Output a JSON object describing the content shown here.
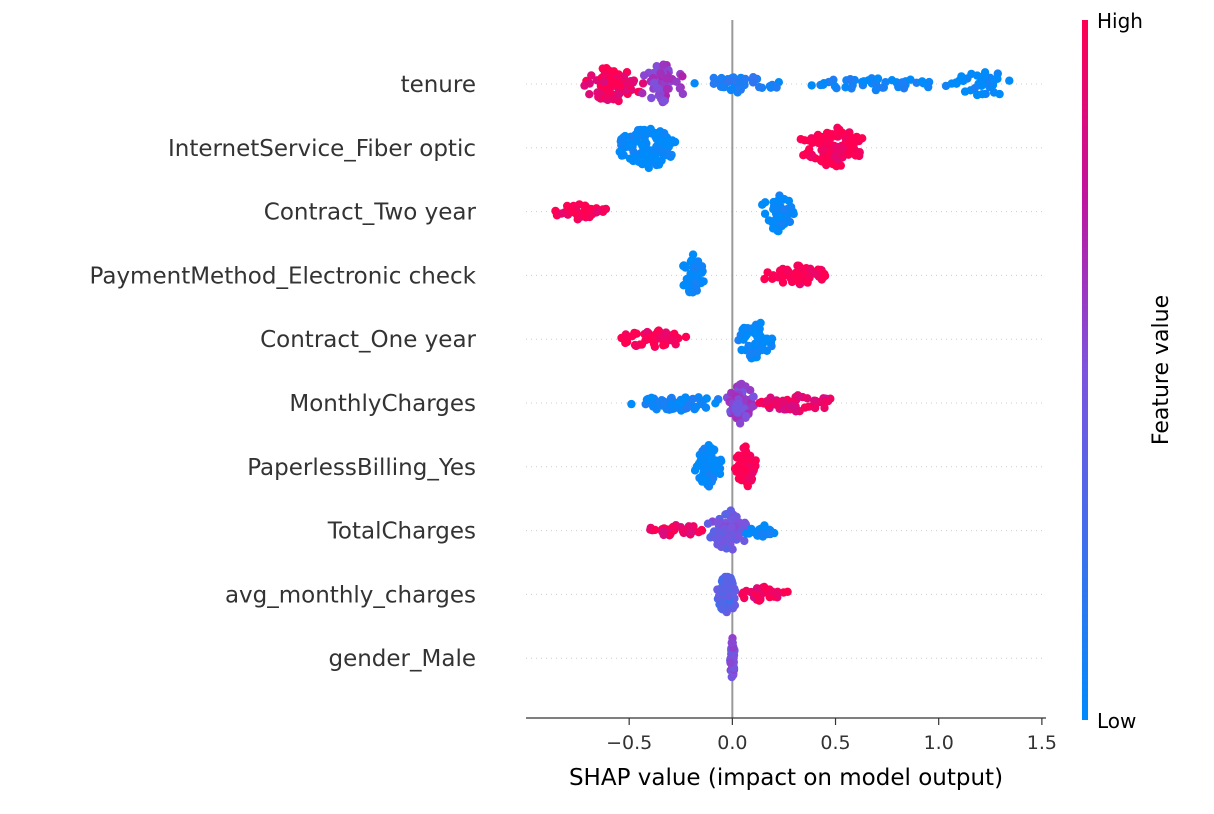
{
  "chart_data": {
    "type": "scatter",
    "subtype": "shap-beeswarm",
    "xlabel": "SHAP value (impact on model output)",
    "xlim": [
      -1.0,
      1.52
    ],
    "xticks": [
      -0.5,
      0.0,
      0.5,
      1.0,
      1.5
    ],
    "xtick_labels": [
      "−0.5",
      "0.0",
      "0.5",
      "1.0",
      "1.5"
    ],
    "zero_line": 0.0,
    "grid": false,
    "colorbar": {
      "label": "Feature value",
      "high_label": "High",
      "low_label": "Low",
      "high_color": "#ff0052",
      "low_color": "#008bfb"
    },
    "features": [
      {
        "name": "tenure",
        "clusters": [
          {
            "min": -0.75,
            "max": -0.42,
            "count": 70,
            "fv": 0.95,
            "spread": 0.9
          },
          {
            "min": -0.45,
            "max": -0.22,
            "count": 60,
            "fv": 0.6,
            "spread": 1.0
          },
          {
            "min": -0.25,
            "max": 0.3,
            "count": 40,
            "fv": 0.1,
            "spread": 0.4
          },
          {
            "min": 0.3,
            "max": 1.05,
            "count": 45,
            "fv": 0.05,
            "spread": 0.3
          },
          {
            "min": 1.03,
            "max": 1.42,
            "count": 35,
            "fv": 0.0,
            "spread": 0.6
          }
        ]
      },
      {
        "name": "InternetService_Fiber optic",
        "clusters": [
          {
            "min": -0.57,
            "max": -0.25,
            "count": 110,
            "fv": 0.0,
            "spread": 1.0
          },
          {
            "min": 0.32,
            "max": 0.66,
            "count": 100,
            "fv": 1.0,
            "spread": 1.0
          }
        ]
      },
      {
        "name": "Contract_Two year",
        "clusters": [
          {
            "min": -0.88,
            "max": -0.58,
            "count": 40,
            "fv": 1.0,
            "spread": 0.4
          },
          {
            "min": 0.14,
            "max": 0.3,
            "count": 55,
            "fv": 0.0,
            "spread": 1.0
          }
        ]
      },
      {
        "name": "PaymentMethod_Electronic check",
        "clusters": [
          {
            "min": -0.25,
            "max": -0.12,
            "count": 55,
            "fv": 0.0,
            "spread": 1.0
          },
          {
            "min": 0.15,
            "max": 0.48,
            "count": 55,
            "fv": 1.0,
            "spread": 0.45
          }
        ]
      },
      {
        "name": "Contract_One year",
        "clusters": [
          {
            "min": -0.58,
            "max": -0.2,
            "count": 45,
            "fv": 1.0,
            "spread": 0.45
          },
          {
            "min": 0.02,
            "max": 0.2,
            "count": 55,
            "fv": 0.0,
            "spread": 1.0
          }
        ]
      },
      {
        "name": "MonthlyCharges",
        "clusters": [
          {
            "min": -0.53,
            "max": -0.02,
            "count": 60,
            "fv": 0.05,
            "spread": 0.4
          },
          {
            "min": -0.03,
            "max": 0.12,
            "count": 70,
            "fv": 0.55,
            "spread": 1.0
          },
          {
            "min": 0.1,
            "max": 0.53,
            "count": 55,
            "fv": 0.9,
            "spread": 0.4
          }
        ]
      },
      {
        "name": "PaperlessBilling_Yes",
        "clusters": [
          {
            "min": -0.2,
            "max": -0.03,
            "count": 60,
            "fv": 0.0,
            "spread": 1.0
          },
          {
            "min": 0.01,
            "max": 0.12,
            "count": 60,
            "fv": 1.0,
            "spread": 1.0
          }
        ]
      },
      {
        "name": "TotalCharges",
        "clusters": [
          {
            "min": -0.41,
            "max": -0.12,
            "count": 35,
            "fv": 0.95,
            "spread": 0.3
          },
          {
            "min": -0.12,
            "max": 0.08,
            "count": 70,
            "fv": 0.45,
            "spread": 1.0
          },
          {
            "min": 0.05,
            "max": 0.25,
            "count": 20,
            "fv": 0.0,
            "spread": 0.3
          }
        ]
      },
      {
        "name": "avg_monthly_charges",
        "clusters": [
          {
            "min": -0.08,
            "max": 0.03,
            "count": 70,
            "fv": 0.35,
            "spread": 1.0
          },
          {
            "min": 0.03,
            "max": 0.28,
            "count": 30,
            "fv": 0.95,
            "spread": 0.35
          }
        ]
      },
      {
        "name": "gender_Male",
        "clusters": [
          {
            "min": -0.012,
            "max": 0.012,
            "count": 45,
            "fv": 0.5,
            "spread": 1.0
          }
        ]
      }
    ]
  }
}
